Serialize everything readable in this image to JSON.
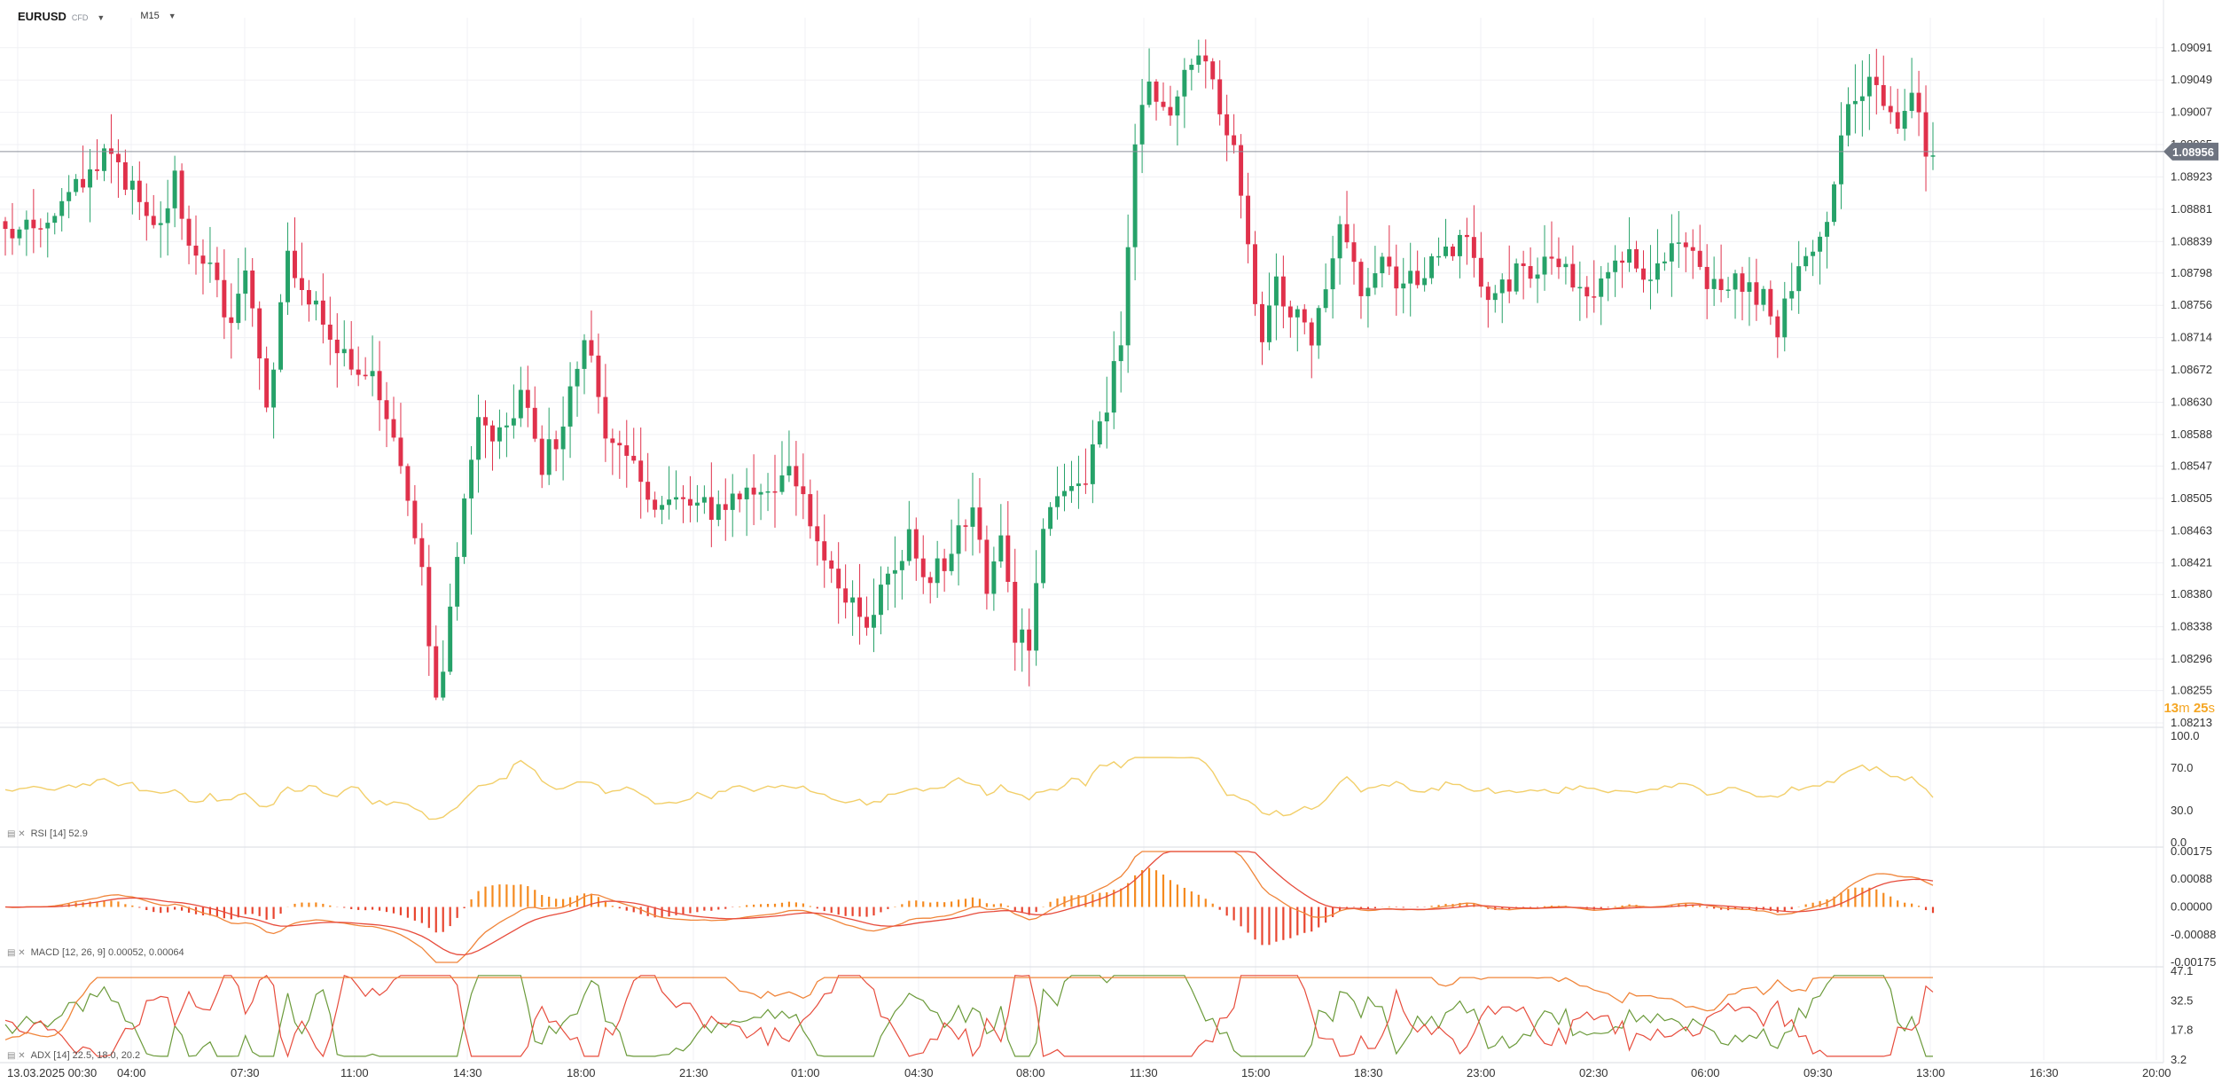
{
  "symbol": "EURUSD",
  "symbol_sub": "CFD",
  "timeframe": "M15",
  "current_price": "1.08956",
  "countdown": {
    "minutes": "13",
    "m": "m",
    "seconds": "25",
    "s": "s"
  },
  "price_axis": [
    "1.09091",
    "1.09049",
    "1.09007",
    "1.08965",
    "1.08923",
    "1.08881",
    "1.08839",
    "1.08798",
    "1.08756",
    "1.08714",
    "1.08672",
    "1.08630",
    "1.08588",
    "1.08547",
    "1.08505",
    "1.08463",
    "1.08421",
    "1.08380",
    "1.08338",
    "1.08296",
    "1.08255",
    "1.08213"
  ],
  "time_axis": [
    "13.03.2025  00:30",
    "04:00",
    "07:30",
    "11:00",
    "14:30",
    "18:00",
    "21:30",
    "01:00",
    "04:30",
    "08:00",
    "11:30",
    "15:00",
    "18:30",
    "23:00",
    "02:30",
    "06:00",
    "09:30",
    "13:00",
    "16:30",
    "20:00"
  ],
  "rsi": {
    "label": "RSI [14]  52.9",
    "axis": [
      "100.0",
      "70.0",
      "30.0",
      "0.0"
    ]
  },
  "macd": {
    "label": "MACD [12,  26,  9]  0.00052,  0.00064",
    "axis": [
      "0.00175",
      "0.00088",
      "0.00000",
      "-0.00088",
      "-0.00175"
    ]
  },
  "adx": {
    "label": "ADX [14]  22.5,  18.0,  20.2",
    "axis": [
      "47.1",
      "32.5",
      "17.8",
      "3.2"
    ]
  },
  "colors": {
    "up": "#26a269",
    "down": "#e0314b",
    "rsi": "#f2cf6a",
    "macd_line": "#f0853a",
    "signal_line": "#e74c3c",
    "hist_up": "#f58a1f",
    "hist_down": "#e8452f",
    "adx": "#f0853a",
    "di_plus": "#6b9a3a",
    "di_minus": "#e74c3c",
    "grid": "#f0f1f4",
    "text": "#333333"
  },
  "chart_data": {
    "type": "candlestick",
    "symbol": "EURUSD",
    "timeframe": "M15",
    "ylim": [
      1.08213,
      1.0913
    ],
    "close_waypoints": [
      [
        0,
        1.0885
      ],
      [
        6,
        1.0885
      ],
      [
        10,
        1.0891
      ],
      [
        14,
        1.0895
      ],
      [
        18,
        1.0891
      ],
      [
        22,
        1.0885
      ],
      [
        24,
        1.0892
      ],
      [
        26,
        1.0884
      ],
      [
        30,
        1.0878
      ],
      [
        32,
        1.0872
      ],
      [
        34,
        1.088
      ],
      [
        37,
        1.0862
      ],
      [
        40,
        1.0882
      ],
      [
        43,
        1.0876
      ],
      [
        46,
        1.0872
      ],
      [
        49,
        1.0868
      ],
      [
        52,
        1.0866
      ],
      [
        55,
        1.0858
      ],
      [
        57,
        1.085
      ],
      [
        59,
        1.0841
      ],
      [
        61,
        1.0823
      ],
      [
        63,
        1.0835
      ],
      [
        65,
        1.085
      ],
      [
        67,
        1.086
      ],
      [
        70,
        1.0858
      ],
      [
        73,
        1.0864
      ],
      [
        76,
        1.0855
      ],
      [
        79,
        1.086
      ],
      [
        82,
        1.0872
      ],
      [
        85,
        1.086
      ],
      [
        88,
        1.0855
      ],
      [
        91,
        1.0851
      ],
      [
        95,
        1.085
      ],
      [
        100,
        1.0849
      ],
      [
        104,
        1.0851
      ],
      [
        108,
        1.0852
      ],
      [
        111,
        1.0854
      ],
      [
        113,
        1.085
      ],
      [
        117,
        1.084
      ],
      [
        120,
        1.0838
      ],
      [
        122,
        1.0835
      ],
      [
        125,
        1.084
      ],
      [
        128,
        1.0845
      ],
      [
        131,
        1.084
      ],
      [
        134,
        1.0843
      ],
      [
        137,
        1.085
      ],
      [
        139,
        1.0838
      ],
      [
        141,
        1.0845
      ],
      [
        143,
        1.0833
      ],
      [
        145,
        1.0832
      ],
      [
        147,
        1.0847
      ],
      [
        150,
        1.0852
      ],
      [
        153,
        1.0853
      ],
      [
        156,
        1.0862
      ],
      [
        158,
        1.0872
      ],
      [
        160,
        1.0895
      ],
      [
        162,
        1.0905
      ],
      [
        164,
        1.09
      ],
      [
        166,
        1.0902
      ],
      [
        168,
        1.0907
      ],
      [
        170,
        1.0908
      ],
      [
        172,
        1.09
      ],
      [
        174,
        1.0895
      ],
      [
        176,
        1.0883
      ],
      [
        178,
        1.087
      ],
      [
        180,
        1.0878
      ],
      [
        182,
        1.0875
      ],
      [
        185,
        1.0871
      ],
      [
        187,
        1.0877
      ],
      [
        189,
        1.0885
      ],
      [
        192,
        1.0878
      ],
      [
        195,
        1.0882
      ],
      [
        198,
        1.0878
      ],
      [
        201,
        1.088
      ],
      [
        204,
        1.0883
      ],
      [
        207,
        1.0884
      ],
      [
        210,
        1.0876
      ],
      [
        213,
        1.0879
      ],
      [
        216,
        1.088
      ],
      [
        219,
        1.0882
      ],
      [
        222,
        1.0878
      ],
      [
        225,
        1.0876
      ],
      [
        228,
        1.0883
      ],
      [
        231,
        1.0881
      ],
      [
        234,
        1.088
      ],
      [
        237,
        1.0883
      ],
      [
        240,
        1.088
      ],
      [
        243,
        1.0877
      ],
      [
        246,
        1.0879
      ],
      [
        249,
        1.0876
      ],
      [
        251,
        1.0873
      ],
      [
        253,
        1.0877
      ],
      [
        256,
        1.0883
      ],
      [
        258,
        1.0888
      ],
      [
        260,
        1.0898
      ],
      [
        262,
        1.0903
      ],
      [
        264,
        1.0905
      ],
      [
        266,
        1.0903
      ],
      [
        268,
        1.09
      ],
      [
        270,
        1.0904
      ],
      [
        272,
        1.0895
      ],
      [
        273,
        1.0894
      ]
    ],
    "current_price": 1.08956,
    "indicators": {
      "rsi": {
        "period": 14,
        "value": 52.9,
        "ylim": [
          0,
          100
        ]
      },
      "macd": {
        "fast": 12,
        "slow": 26,
        "signal": 9,
        "macd": 0.00052,
        "signal_value": 0.00064,
        "ylim": [
          -0.00175,
          0.00175
        ]
      },
      "adx": {
        "period": 14,
        "adx": 22.5,
        "di_plus": 18.0,
        "di_minus": 20.2,
        "ylim": [
          3.2,
          47.1
        ]
      }
    }
  }
}
